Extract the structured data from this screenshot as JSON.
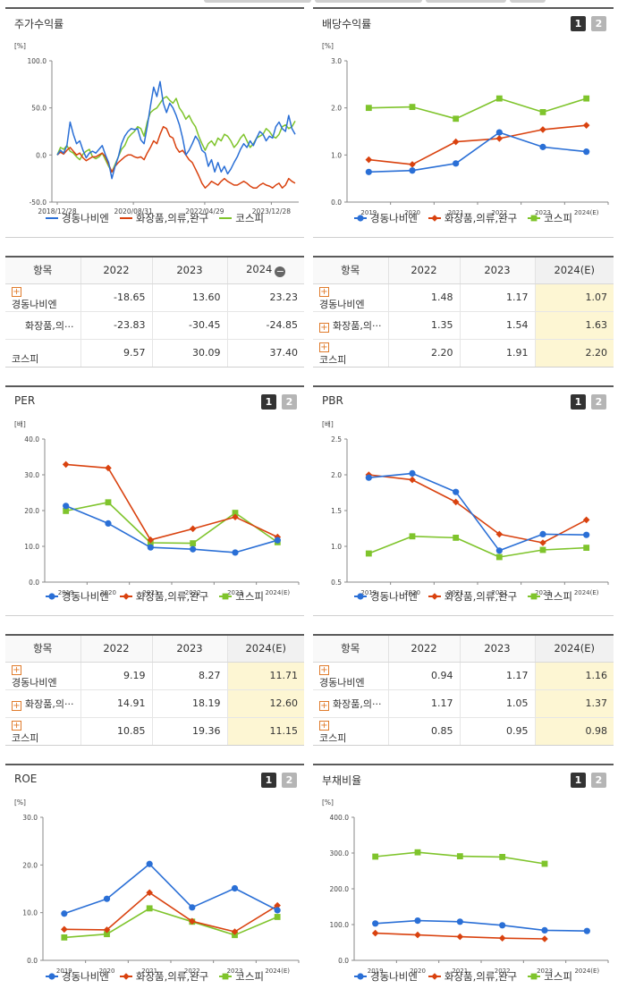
{
  "labels": {
    "table_header_item": "항목",
    "more_label": "···"
  },
  "legend": [
    {
      "name": "경동나비엔",
      "color": "#2a6fd6",
      "marker": "circle"
    },
    {
      "name": "화장품,의류,완구",
      "color": "#d9420f",
      "marker": "diamond"
    },
    {
      "name": "코스피",
      "color": "#7fc42c",
      "marker": "square"
    }
  ],
  "panels": {
    "stock": {
      "title": "주가수익률",
      "unit": "[%]"
    },
    "dividend": {
      "title": "배당수익률",
      "unit": "[%]",
      "pages": [
        "1",
        "2"
      ]
    },
    "per": {
      "title": "PER",
      "unit": "[배]",
      "pages": [
        "1",
        "2"
      ]
    },
    "pbr": {
      "title": "PBR",
      "unit": "[배]",
      "pages": [
        "1",
        "2"
      ]
    },
    "roe": {
      "title": "ROE",
      "unit": "[%]",
      "pages": [
        "1",
        "2"
      ]
    },
    "debt": {
      "title": "부채비율",
      "unit": "[%]",
      "pages": [
        "1",
        "2"
      ]
    }
  },
  "tables": {
    "stock": {
      "headers": [
        "항목",
        "2022",
        "2023",
        "2024"
      ],
      "rows": [
        {
          "name": "경동나비엔",
          "plus": true,
          "values": [
            "-18.65",
            "13.60",
            "23.23"
          ]
        },
        {
          "name": "화장품,의류,완구",
          "plus": false,
          "values": [
            "-23.83",
            "-30.45",
            "-24.85"
          ]
        },
        {
          "name": "코스피",
          "plus": false,
          "values": [
            "9.57",
            "30.09",
            "37.40"
          ]
        }
      ]
    },
    "dividend": {
      "headers": [
        "항목",
        "2022",
        "2023",
        "2024(E)"
      ],
      "rows": [
        {
          "name": "경동나비엔",
          "plus": true,
          "values": [
            "1.48",
            "1.17",
            "1.07"
          ]
        },
        {
          "name": "화장품,의류,완구",
          "plus": true,
          "values": [
            "1.35",
            "1.54",
            "1.63"
          ]
        },
        {
          "name": "코스피",
          "plus": true,
          "values": [
            "2.20",
            "1.91",
            "2.20"
          ]
        }
      ]
    },
    "per": {
      "headers": [
        "항목",
        "2022",
        "2023",
        "2024(E)"
      ],
      "rows": [
        {
          "name": "경동나비엔",
          "plus": true,
          "values": [
            "9.19",
            "8.27",
            "11.71"
          ]
        },
        {
          "name": "화장품,의류,완구",
          "plus": true,
          "values": [
            "14.91",
            "18.19",
            "12.60"
          ]
        },
        {
          "name": "코스피",
          "plus": true,
          "values": [
            "10.85",
            "19.36",
            "11.15"
          ]
        }
      ]
    },
    "pbr": {
      "headers": [
        "항목",
        "2022",
        "2023",
        "2024(E)"
      ],
      "rows": [
        {
          "name": "경동나비엔",
          "plus": true,
          "values": [
            "0.94",
            "1.17",
            "1.16"
          ]
        },
        {
          "name": "화장품,의류,완구",
          "plus": true,
          "values": [
            "1.17",
            "1.05",
            "1.37"
          ]
        },
        {
          "name": "코스피",
          "plus": true,
          "values": [
            "0.85",
            "0.95",
            "0.98"
          ]
        }
      ]
    }
  },
  "chart_data": [
    {
      "id": "stock",
      "type": "line",
      "ylabel": "[%]",
      "ylim": [
        -50,
        100
      ],
      "yticks": [
        "100.0",
        "50.0",
        "0.0",
        "-50.0"
      ],
      "xticks": [
        "2018/12/28",
        "2020/08/31",
        "2022/04/29",
        "2023/12/28"
      ],
      "series": [
        {
          "name": "경동나비엔",
          "values": [
            0,
            5,
            2,
            10,
            35,
            22,
            12,
            15,
            5,
            -3,
            2,
            4,
            2,
            6,
            10,
            0,
            -8,
            -25,
            -12,
            -2,
            12,
            20,
            25,
            28,
            27,
            28,
            16,
            12,
            30,
            52,
            72,
            62,
            78,
            55,
            45,
            55,
            50,
            42,
            32,
            18,
            0,
            5,
            12,
            20,
            15,
            5,
            2,
            -12,
            -5,
            -18,
            -8,
            -18,
            -12,
            -20,
            -15,
            -8,
            -2,
            6,
            12,
            8,
            15,
            10,
            18,
            25,
            22,
            15,
            20,
            18,
            30,
            35,
            28,
            25,
            42,
            28,
            22
          ]
        },
        {
          "name": "화장품,의류,완구",
          "values": [
            0,
            3,
            1,
            5,
            8,
            4,
            0,
            2,
            -3,
            -6,
            -4,
            -2,
            -2,
            0,
            2,
            -2,
            -10,
            -18,
            -12,
            -8,
            -5,
            -2,
            0,
            0,
            -2,
            -3,
            -2,
            -5,
            2,
            8,
            15,
            12,
            22,
            30,
            28,
            20,
            18,
            8,
            3,
            5,
            0,
            -5,
            -8,
            -15,
            -22,
            -30,
            -35,
            -32,
            -28,
            -30,
            -32,
            -28,
            -25,
            -28,
            -30,
            -32,
            -32,
            -30,
            -28,
            -30,
            -33,
            -35,
            -35,
            -32,
            -30,
            -32,
            -33,
            -35,
            -32,
            -30,
            -35,
            -32,
            -25,
            -28,
            -30
          ]
        },
        {
          "name": "코스피",
          "values": [
            0,
            8,
            6,
            10,
            4,
            2,
            -2,
            -5,
            1,
            4,
            6,
            -2,
            -4,
            -2,
            2,
            -5,
            -12,
            -18,
            -10,
            -2,
            6,
            10,
            18,
            22,
            25,
            30,
            28,
            20,
            35,
            45,
            48,
            50,
            55,
            60,
            62,
            58,
            55,
            60,
            50,
            45,
            38,
            42,
            35,
            30,
            20,
            12,
            5,
            12,
            15,
            10,
            18,
            15,
            22,
            20,
            15,
            8,
            12,
            18,
            22,
            15,
            8,
            12,
            18,
            20,
            22,
            28,
            25,
            20,
            18,
            22,
            30,
            32,
            28,
            30,
            36
          ]
        }
      ]
    },
    {
      "id": "dividend",
      "type": "line",
      "ylabel": "[%]",
      "ylim": [
        0,
        3
      ],
      "yticks": [
        "3.0",
        "2.0",
        "1.0",
        "0.0"
      ],
      "categories": [
        "2019",
        "2020",
        "2021",
        "2022",
        "2023",
        "2024(E)"
      ],
      "series": [
        {
          "name": "경동나비엔",
          "values": [
            0.64,
            0.67,
            0.82,
            1.48,
            1.17,
            1.07
          ]
        },
        {
          "name": "화장품,의류,완구",
          "values": [
            0.9,
            0.8,
            1.28,
            1.35,
            1.54,
            1.63
          ]
        },
        {
          "name": "코스피",
          "values": [
            2.0,
            2.02,
            1.77,
            2.2,
            1.91,
            2.2
          ]
        }
      ]
    },
    {
      "id": "per",
      "type": "line",
      "ylabel": "[배]",
      "ylim": [
        0,
        40
      ],
      "yticks": [
        "40.0",
        "30.0",
        "20.0",
        "10.0",
        "0.0"
      ],
      "categories": [
        "2019",
        "2020",
        "2021",
        "2022",
        "2023",
        "2024(E)"
      ],
      "series": [
        {
          "name": "경동나비엔",
          "values": [
            21.3,
            16.4,
            9.7,
            9.19,
            8.27,
            11.71
          ]
        },
        {
          "name": "화장품,의류,완구",
          "values": [
            32.9,
            31.9,
            11.8,
            14.91,
            18.19,
            12.6
          ]
        },
        {
          "name": "코스피",
          "values": [
            19.9,
            22.3,
            11.0,
            10.85,
            19.36,
            11.15
          ]
        }
      ]
    },
    {
      "id": "pbr",
      "type": "line",
      "ylabel": "[배]",
      "ylim": [
        0.5,
        2.5
      ],
      "yticks": [
        "2.5",
        "2.0",
        "1.5",
        "1.0",
        "0.5"
      ],
      "categories": [
        "2019",
        "2020",
        "2021",
        "2022",
        "2023",
        "2024(E)"
      ],
      "series": [
        {
          "name": "경동나비엔",
          "values": [
            1.96,
            2.02,
            1.76,
            0.94,
            1.17,
            1.16
          ]
        },
        {
          "name": "화장품,의류,완구",
          "values": [
            2.0,
            1.93,
            1.62,
            1.17,
            1.05,
            1.37
          ]
        },
        {
          "name": "코스피",
          "values": [
            0.9,
            1.14,
            1.12,
            0.85,
            0.95,
            0.98
          ]
        }
      ]
    },
    {
      "id": "roe",
      "type": "line",
      "ylabel": "[%]",
      "ylim": [
        0,
        30
      ],
      "yticks": [
        "30.0",
        "20.0",
        "10.0",
        "0.0"
      ],
      "categories": [
        "2019",
        "2020",
        "2021",
        "2022",
        "2023",
        "2024(E)"
      ],
      "series": [
        {
          "name": "경동나비엔",
          "values": [
            9.8,
            12.9,
            20.2,
            11.1,
            15.1,
            10.5
          ]
        },
        {
          "name": "화장품,의류,완구",
          "values": [
            6.5,
            6.4,
            14.2,
            8.2,
            6.0,
            11.5
          ]
        },
        {
          "name": "코스피",
          "values": [
            4.8,
            5.5,
            10.9,
            8.1,
            5.3,
            9.1
          ]
        }
      ]
    },
    {
      "id": "debt",
      "type": "line",
      "ylabel": "[%]",
      "ylim": [
        0,
        400
      ],
      "yticks": [
        "400.0",
        "300.0",
        "200.0",
        "100.0",
        "0.0"
      ],
      "categories": [
        "2019",
        "2020",
        "2021",
        "2022",
        "2023",
        "2024(E)"
      ],
      "series": [
        {
          "name": "경동나비엔",
          "values": [
            103,
            111,
            108,
            98,
            84,
            82
          ]
        },
        {
          "name": "화장품,의류,완구",
          "values": [
            76,
            71,
            66,
            62,
            60,
            null
          ]
        },
        {
          "name": "코스피",
          "values": [
            290,
            302,
            291,
            289,
            270,
            null
          ]
        }
      ]
    }
  ]
}
